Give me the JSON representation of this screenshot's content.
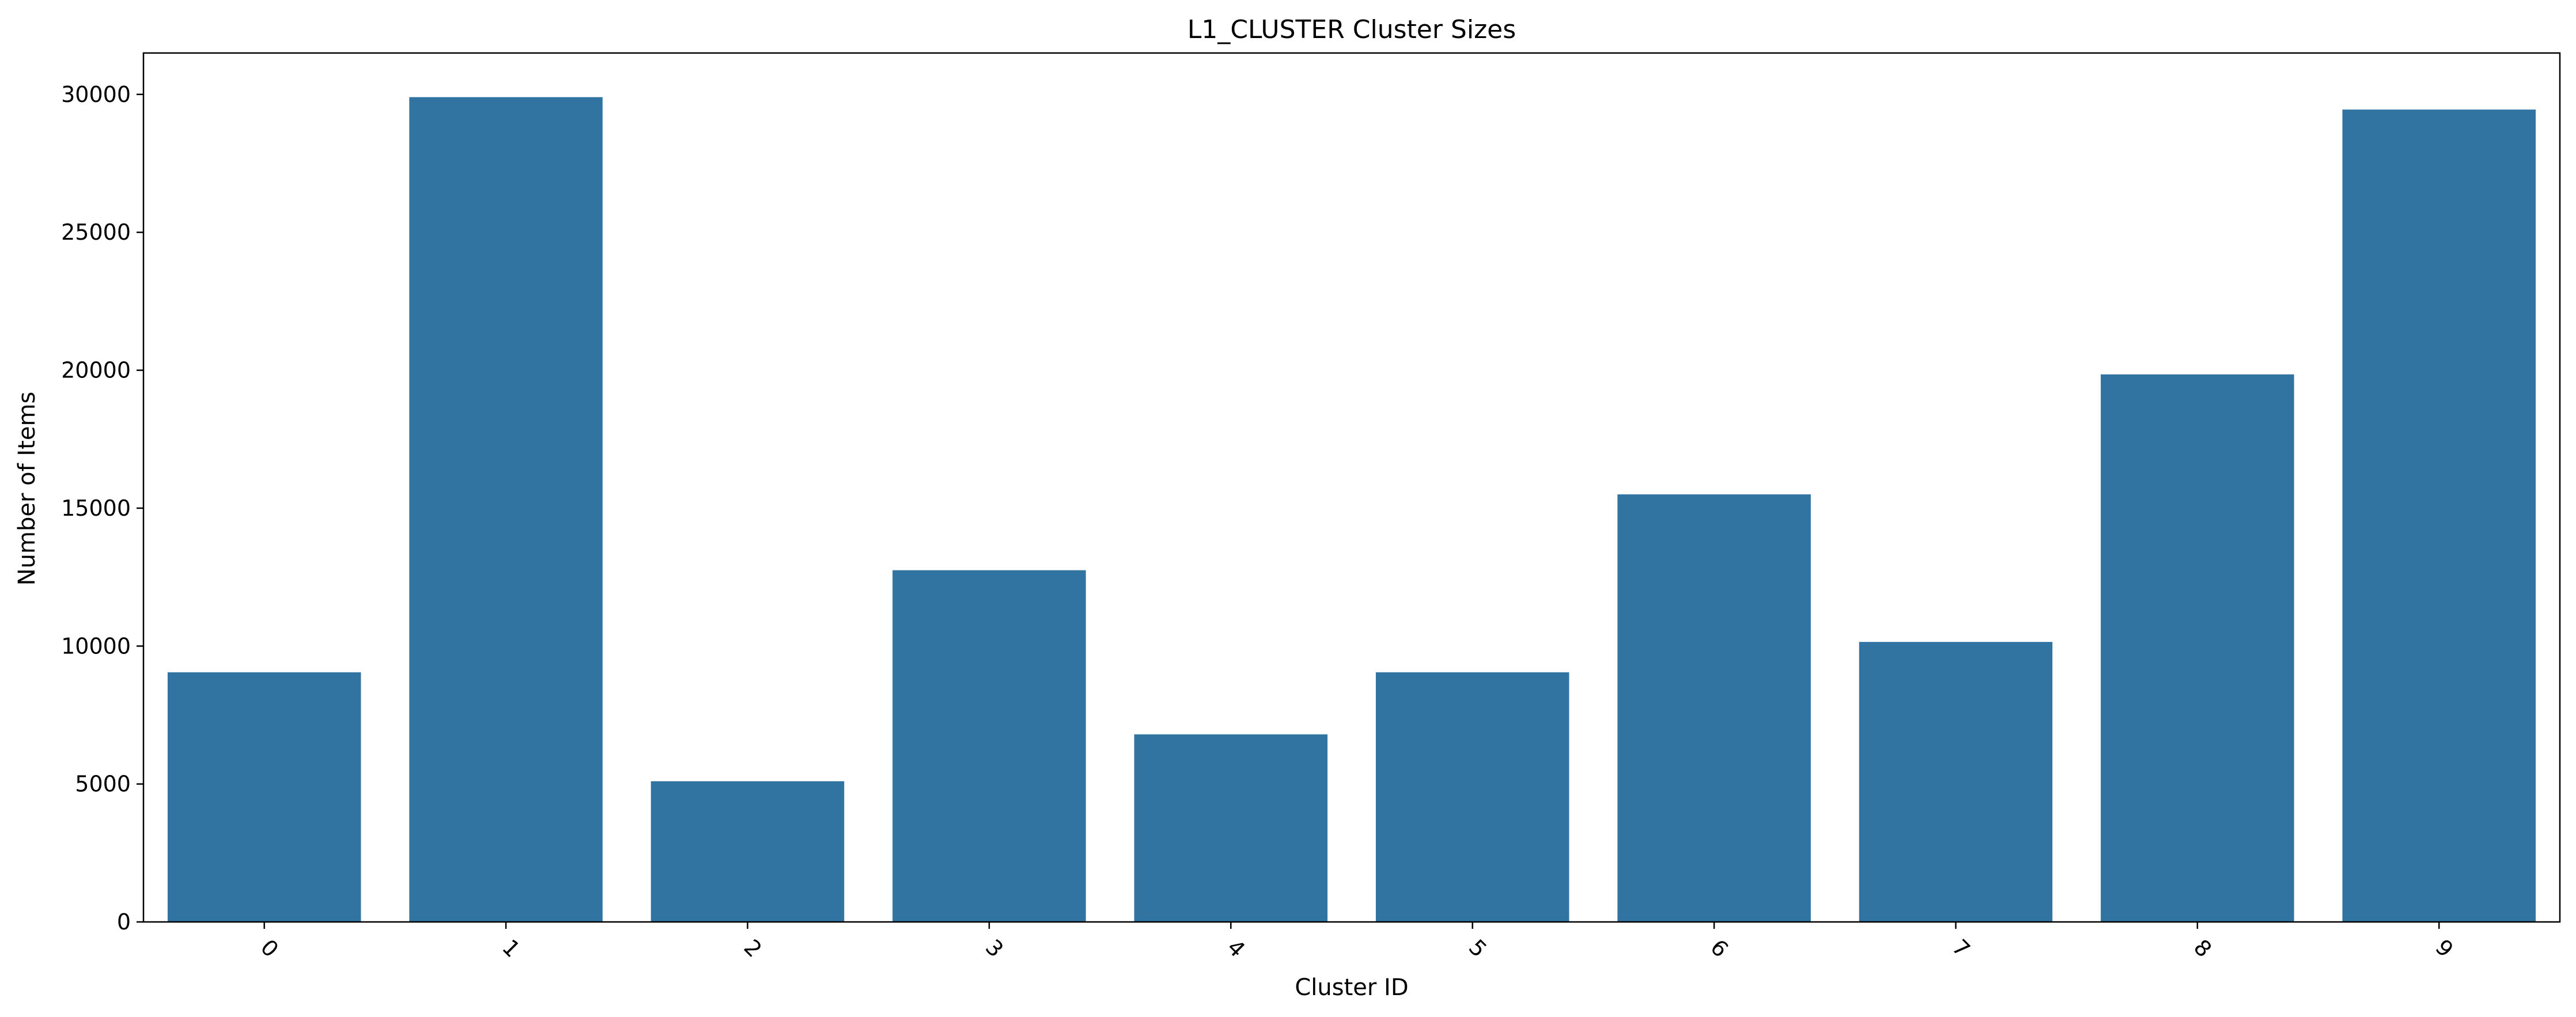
{
  "chart_data": {
    "type": "bar",
    "title": "L1_CLUSTER Cluster Sizes",
    "xlabel": "Cluster ID",
    "ylabel": "Number of Items",
    "categories": [
      "0",
      "1",
      "2",
      "3",
      "4",
      "5",
      "6",
      "7",
      "8",
      "9"
    ],
    "values": [
      9050,
      29900,
      5100,
      12750,
      6800,
      9050,
      15500,
      10150,
      19850,
      29450
    ],
    "ylim": [
      0,
      31500
    ],
    "yticks": [
      0,
      5000,
      10000,
      15000,
      20000,
      25000,
      30000
    ],
    "ytick_labels": [
      "0",
      "5000",
      "10000",
      "15000",
      "20000",
      "25000",
      "30000"
    ],
    "xtick_rotation": 45,
    "grid": false,
    "bar_color": "#3274a1",
    "axis_color": "#000000"
  }
}
